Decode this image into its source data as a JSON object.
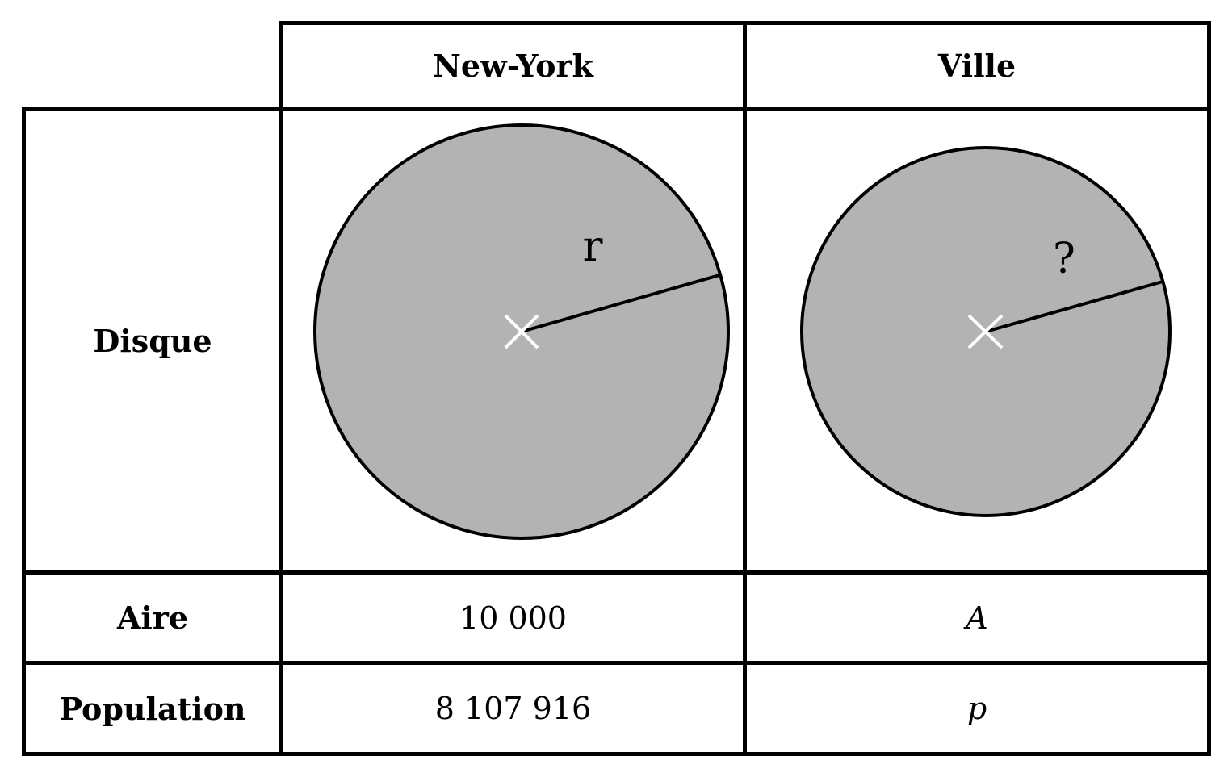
{
  "columns": {
    "col1_header": "New-York",
    "col2_header": "Ville"
  },
  "rows": {
    "disk_label": "Disque",
    "area_label": "Aire",
    "population_label": "Population"
  },
  "new_york": {
    "radius_label": "r",
    "area": "10 000",
    "population": "8 107 916"
  },
  "city": {
    "radius_label": "?",
    "area": "A",
    "population": "p"
  },
  "colors": {
    "disk_fill": "#b3b3b3",
    "border": "#000000",
    "center_mark": "#ffffff"
  }
}
